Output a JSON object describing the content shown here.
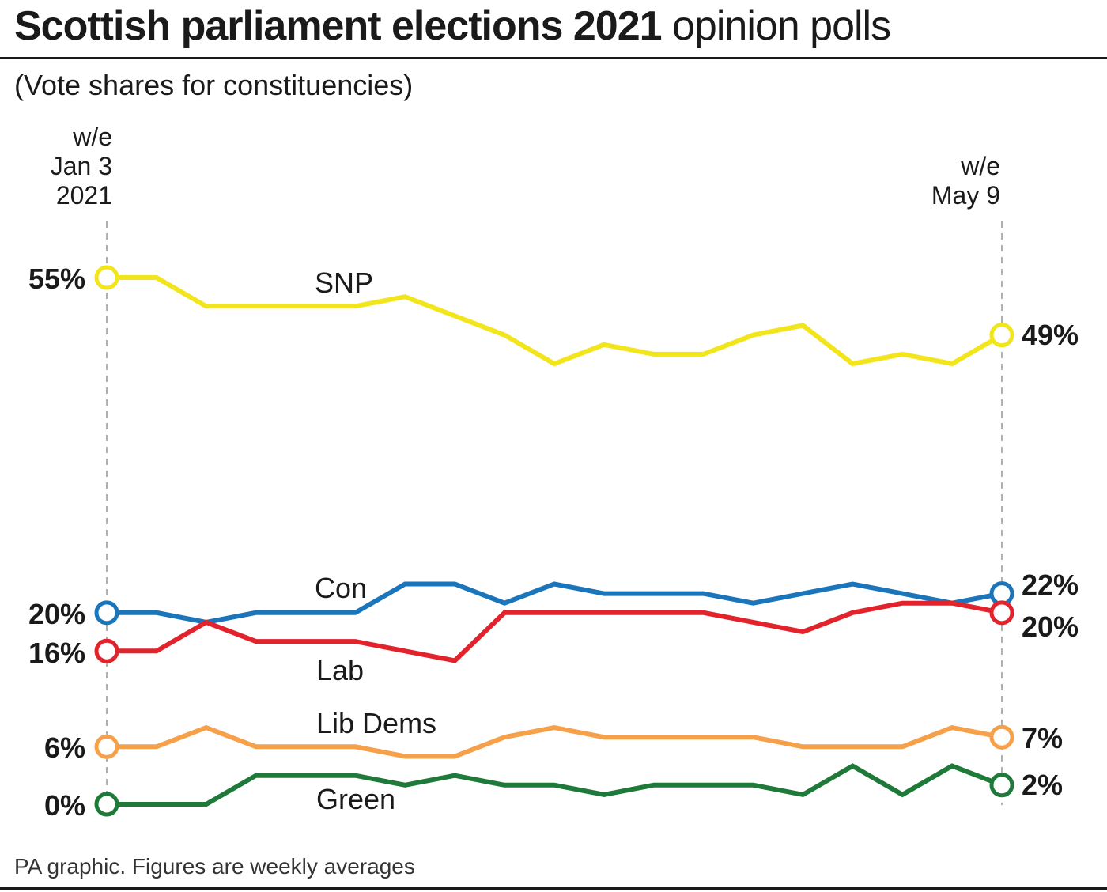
{
  "header": {
    "title_bold": "Scottish parliament elections 2021",
    "title_light": "opinion polls",
    "subtitle": "(Vote shares for constituencies)"
  },
  "footer": {
    "note": "PA graphic. Figures are weekly averages"
  },
  "chart_data": {
    "type": "line",
    "x_start_label": [
      "w/e",
      "Jan 3",
      "2021"
    ],
    "x_end_label": [
      "w/e",
      "May 9"
    ],
    "ylim": [
      0,
      55
    ],
    "grid": false,
    "weeks": 19,
    "series": [
      {
        "name": "SNP",
        "color": "#f2e51b",
        "values": [
          55,
          55,
          52,
          52,
          52,
          52,
          53,
          51,
          49,
          46,
          48,
          47,
          47,
          49,
          50,
          46,
          47,
          46,
          49
        ],
        "start_label": "55%",
        "end_label": "49%"
      },
      {
        "name": "Con",
        "color": "#1b75bb",
        "values": [
          20,
          20,
          19,
          20,
          20,
          20,
          23,
          23,
          21,
          23,
          22,
          22,
          22,
          21,
          22,
          23,
          22,
          21,
          22
        ],
        "start_label": "20%",
        "end_label": "22%"
      },
      {
        "name": "Lab",
        "color": "#e3232b",
        "values": [
          16,
          16,
          19,
          17,
          17,
          17,
          16,
          15,
          20,
          20,
          20,
          20,
          20,
          19,
          18,
          20,
          21,
          21,
          20
        ],
        "start_label": "16%",
        "end_label": "20%"
      },
      {
        "name": "Lib Dems",
        "color": "#f7a04a",
        "values": [
          6,
          6,
          8,
          6,
          6,
          6,
          5,
          5,
          7,
          8,
          7,
          7,
          7,
          7,
          6,
          6,
          6,
          8,
          7
        ],
        "start_label": "6%",
        "end_label": "7%"
      },
      {
        "name": "Green",
        "color": "#1f7a3a",
        "values": [
          0,
          0,
          0,
          3,
          3,
          3,
          2,
          3,
          2,
          2,
          1,
          2,
          2,
          2,
          1,
          4,
          1,
          4,
          2
        ],
        "start_label": "0%",
        "end_label": "2%"
      }
    ]
  }
}
